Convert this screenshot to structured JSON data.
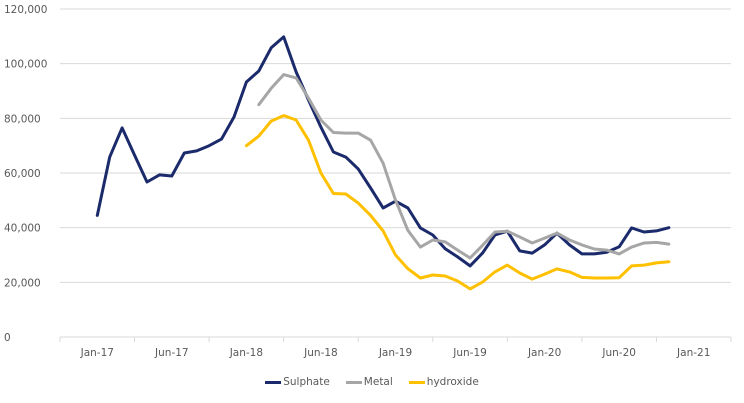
{
  "chart_data": {
    "type": "line",
    "title": "",
    "xlabel": "",
    "ylabel": "",
    "ylim": [
      0,
      120000
    ],
    "y_ticks": [
      0,
      20000,
      40000,
      60000,
      80000,
      100000,
      120000
    ],
    "y_tick_labels": [
      "0",
      "20,000",
      "40,000",
      "60,000",
      "80,000",
      "100,000",
      "120,000"
    ],
    "grid": "horizontal",
    "x_tick_labels": [
      "Jan-17",
      "Jun-17",
      "Jan-18",
      "Jun-18",
      "Jan-19",
      "Jun-19",
      "Jan-20",
      "Jun-20",
      "Jan-21"
    ],
    "x_slots_per_label": 6,
    "x_total_slots": 54,
    "legend_position": "bottom",
    "series": [
      {
        "name": "Sulphate",
        "color": "#1B2A6B",
        "start_slot": 3,
        "values": [
          44500,
          65800,
          76500,
          66500,
          56700,
          59300,
          58900,
          67300,
          68100,
          70000,
          72400,
          80500,
          93300,
          97300,
          105800,
          109800,
          97000,
          86700,
          76800,
          67700,
          65800,
          61500,
          54500,
          47200,
          49700,
          47200,
          39900,
          37300,
          32300,
          29300,
          26000,
          30700,
          37300,
          38700,
          31500,
          30700,
          33700,
          38000,
          33700,
          30400,
          30400,
          31000,
          33000,
          39900,
          38400,
          38800,
          40000
        ]
      },
      {
        "name": "Metal",
        "color": "#A6A6A6",
        "start_slot": 16,
        "values": [
          85000,
          91000,
          96000,
          94800,
          87400,
          79400,
          74800,
          74600,
          74600,
          72000,
          63600,
          50100,
          39000,
          32900,
          35500,
          34800,
          31800,
          28900,
          33500,
          38400,
          38700,
          36600,
          34400,
          36200,
          38000,
          35500,
          33700,
          32200,
          31800,
          30400,
          32900,
          34400,
          34600,
          34000
        ]
      },
      {
        "name": "hydroxide",
        "color": "#FFC000",
        "start_slot": 15,
        "values": [
          70000,
          73500,
          79000,
          81000,
          79400,
          72000,
          60000,
          52500,
          52300,
          49000,
          44500,
          38800,
          30000,
          25000,
          21600,
          22700,
          22300,
          20500,
          17600,
          20100,
          23800,
          26300,
          23400,
          21200,
          23000,
          24900,
          23800,
          21800,
          21600,
          21600,
          21700,
          26000,
          26300,
          27100,
          27500
        ]
      }
    ]
  },
  "legend": {
    "items": [
      {
        "label": "Sulphate",
        "color": "#1B2A6B"
      },
      {
        "label": "Metal",
        "color": "#A6A6A6"
      },
      {
        "label": "hydroxide",
        "color": "#FFC000"
      }
    ]
  }
}
